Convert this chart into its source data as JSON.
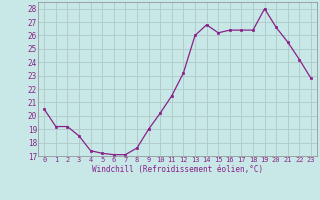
{
  "x": [
    0,
    1,
    2,
    3,
    4,
    5,
    6,
    7,
    8,
    9,
    10,
    11,
    12,
    13,
    14,
    15,
    16,
    17,
    18,
    19,
    20,
    21,
    22,
    23
  ],
  "y": [
    20.5,
    19.2,
    19.2,
    18.5,
    17.4,
    17.2,
    17.1,
    17.1,
    17.6,
    19.0,
    20.2,
    21.5,
    23.2,
    26.0,
    26.8,
    26.2,
    26.4,
    26.4,
    26.4,
    28.0,
    26.6,
    25.5,
    24.2,
    22.8
  ],
  "line_color": "#882288",
  "marker_color": "#882288",
  "bg_color": "#c8e8e8",
  "grid_color": "#b0c8c8",
  "xlabel": "Windchill (Refroidissement éolien,°C)",
  "ylabel_ticks": [
    17,
    18,
    19,
    20,
    21,
    22,
    23,
    24,
    25,
    26,
    27,
    28
  ],
  "xlim": [
    -0.5,
    23.5
  ],
  "ylim": [
    17,
    28.5
  ],
  "xticks": [
    0,
    1,
    2,
    3,
    4,
    5,
    6,
    7,
    8,
    9,
    10,
    11,
    12,
    13,
    14,
    15,
    16,
    17,
    18,
    19,
    20,
    21,
    22,
    23
  ]
}
